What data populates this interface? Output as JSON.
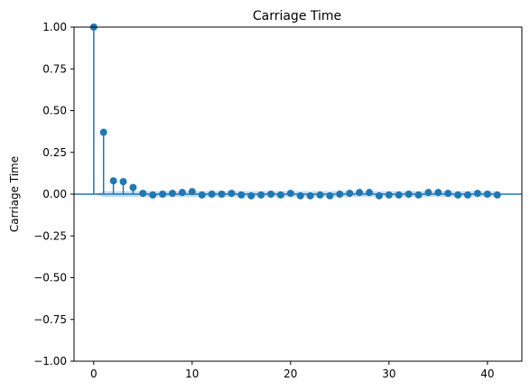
{
  "chart_data": {
    "type": "stem",
    "title": "Carriage Time",
    "xlabel": "",
    "ylabel": "Carriage Time",
    "xlim": [
      -2,
      43.5
    ],
    "ylim": [
      -1.0,
      1.0
    ],
    "xticks": [
      0,
      10,
      20,
      30,
      40
    ],
    "xtick_labels": [
      "0",
      "10",
      "20",
      "30",
      "40"
    ],
    "yticks": [
      1.0,
      0.75,
      0.5,
      0.25,
      0.0,
      -0.25,
      -0.5,
      -0.75,
      -1.0
    ],
    "ytick_labels": [
      "1.00",
      "0.75",
      "0.50",
      "0.25",
      "0.00",
      "−0.25",
      "−0.50",
      "−0.75",
      "−1.00"
    ],
    "grid": false,
    "x": [
      0,
      1,
      2,
      3,
      4,
      5,
      6,
      7,
      8,
      9,
      10,
      11,
      12,
      13,
      14,
      15,
      16,
      17,
      18,
      19,
      20,
      21,
      22,
      23,
      24,
      25,
      26,
      27,
      28,
      29,
      30,
      31,
      32,
      33,
      34,
      35,
      36,
      37,
      38,
      39,
      40,
      41
    ],
    "values": [
      1.0,
      0.37,
      0.08,
      0.075,
      0.04,
      0.005,
      -0.005,
      0.0,
      0.005,
      0.01,
      0.015,
      -0.005,
      0.0,
      0.0,
      0.005,
      -0.005,
      -0.01,
      -0.005,
      0.0,
      -0.005,
      0.005,
      -0.01,
      -0.01,
      -0.005,
      -0.01,
      0.0,
      0.005,
      0.01,
      0.01,
      -0.01,
      -0.005,
      -0.005,
      0.0,
      -0.005,
      0.01,
      0.01,
      0.005,
      -0.005,
      -0.005,
      0.005,
      0.0,
      -0.005
    ],
    "confidence_band": [
      0.0,
      0.018,
      0.018,
      0.018,
      0.018,
      0.018,
      0.018,
      0.018,
      0.018,
      0.018,
      0.018,
      0.018,
      0.018,
      0.018,
      0.018,
      0.018,
      0.018,
      0.018,
      0.018,
      0.018,
      0.018,
      0.018,
      0.018,
      0.018,
      0.018,
      0.018,
      0.018,
      0.018,
      0.018,
      0.018,
      0.018,
      0.018,
      0.018,
      0.018,
      0.018,
      0.018,
      0.018,
      0.018,
      0.018,
      0.018,
      0.018,
      0.018
    ],
    "colors": {
      "stem": "#1f77b4",
      "band": "#a6c8e8",
      "zero_line": "#1f77b4",
      "axis": "#000000"
    }
  }
}
